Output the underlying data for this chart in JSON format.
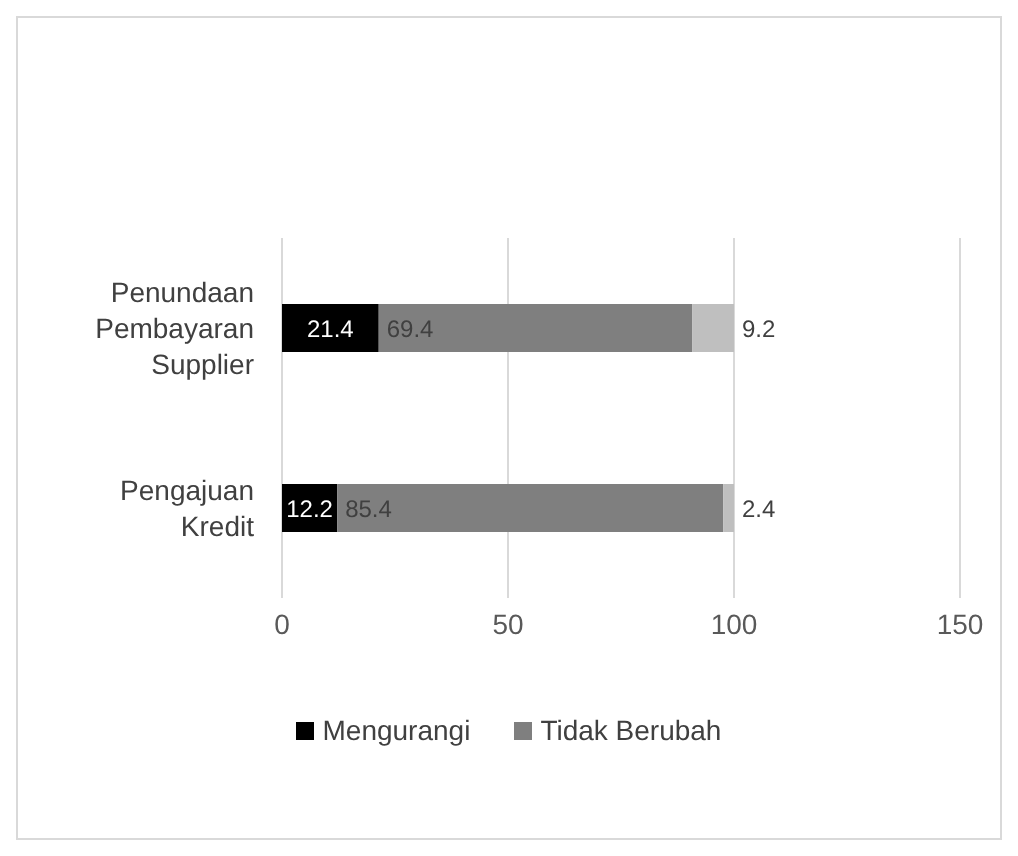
{
  "chart_data": {
    "type": "bar",
    "orientation": "horizontal",
    "stacked": true,
    "categories": [
      "Penundaan Pembayaran Supplier",
      "Pengajuan Kredit"
    ],
    "series": [
      {
        "name": "Mengurangi",
        "color": "#000000",
        "values": [
          21.4,
          12.2
        ]
      },
      {
        "name": "Tidak Berubah",
        "color": "#7f7f7f",
        "values": [
          69.4,
          85.4
        ]
      },
      {
        "color": "#bfbfbf",
        "values": [
          9.2,
          2.4
        ]
      }
    ],
    "xlim": [
      0,
      150
    ],
    "xticks": [
      0,
      50,
      100,
      150
    ],
    "grid": "x",
    "legend": "bottom",
    "data_labels": true
  }
}
